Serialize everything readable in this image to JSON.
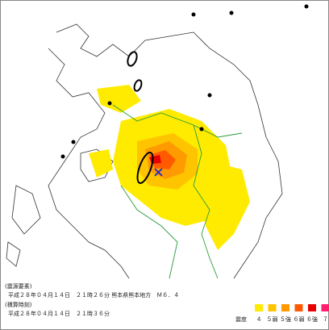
{
  "source_info": {
    "heading": "(震源要素)",
    "detail": "平成２８年０４月１４日　２１時２６分 熊本県熊本地方　Ｍ６．４"
  },
  "time_info": {
    "heading": "(積算時刻)",
    "detail": "平成２８年０４月１４日　２１時３６分"
  },
  "legend": {
    "title": "震度",
    "items": [
      {
        "label": "４",
        "color": "#ffeb00"
      },
      {
        "label": "５弱",
        "color": "#ffc400"
      },
      {
        "label": "５強",
        "color": "#ff9a00"
      },
      {
        "label": "６弱",
        "color": "#ff5a00"
      },
      {
        "label": "６強",
        "color": "#e60000"
      },
      {
        "label": "７",
        "color": "#ff1f6e"
      }
    ]
  }
}
